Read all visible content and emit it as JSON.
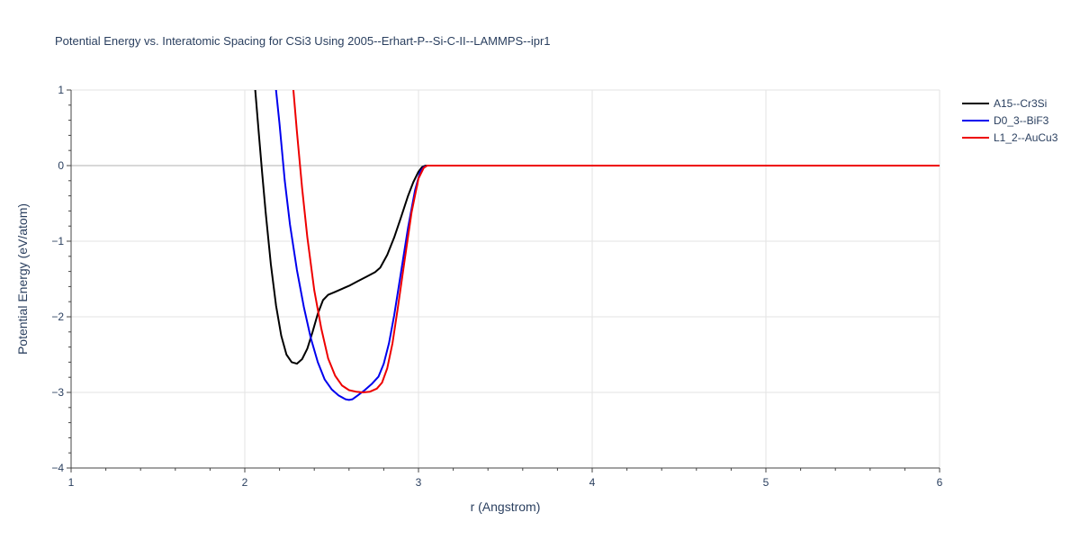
{
  "chart_data": {
    "type": "line",
    "title": "Potential Energy vs. Interatomic Spacing for CSi3 Using 2005--Erhart-P--Si-C-II--LAMMPS--ipr1",
    "xlabel": "r (Angstrom)",
    "ylabel": "Potential Energy (eV/atom)",
    "xlim": [
      1,
      6
    ],
    "ylim": [
      -4,
      1
    ],
    "xticks": [
      1,
      2,
      3,
      4,
      5,
      6
    ],
    "yticks": [
      -4,
      -3,
      -2,
      -1,
      0,
      1
    ],
    "xtick_labels": [
      "1",
      "2",
      "3",
      "4",
      "5",
      "6"
    ],
    "ytick_labels": [
      "−4",
      "−3",
      "−2",
      "−1",
      "0",
      "1"
    ],
    "grid": true,
    "legend_position": "top-right",
    "series": [
      {
        "name": "A15--Cr3Si",
        "color": "#000000",
        "x": [
          2.06,
          2.08,
          2.1,
          2.12,
          2.15,
          2.18,
          2.21,
          2.24,
          2.27,
          2.3,
          2.33,
          2.36,
          2.39,
          2.42,
          2.45,
          2.48,
          2.52,
          2.56,
          2.6,
          2.65,
          2.7,
          2.75,
          2.78,
          2.82,
          2.86,
          2.9,
          2.94,
          2.97,
          3.0,
          3.02,
          3.04,
          3.06,
          3.1,
          3.5,
          4.0,
          4.5,
          5.0,
          5.5,
          6.0
        ],
        "y": [
          1.0,
          0.45,
          -0.1,
          -0.62,
          -1.3,
          -1.85,
          -2.25,
          -2.5,
          -2.6,
          -2.62,
          -2.56,
          -2.42,
          -2.2,
          -1.96,
          -1.78,
          -1.71,
          -1.67,
          -1.63,
          -1.59,
          -1.53,
          -1.47,
          -1.41,
          -1.35,
          -1.18,
          -0.95,
          -0.68,
          -0.4,
          -0.22,
          -0.08,
          -0.02,
          0.0,
          0.0,
          0.0,
          0.0,
          0.0,
          0.0,
          0.0,
          0.0,
          0.0
        ]
      },
      {
        "name": "D0_3--BiF3",
        "color": "#0000ee",
        "x": [
          2.18,
          2.2,
          2.23,
          2.26,
          2.3,
          2.34,
          2.38,
          2.42,
          2.46,
          2.5,
          2.54,
          2.58,
          2.6,
          2.62,
          2.65,
          2.69,
          2.73,
          2.77,
          2.8,
          2.83,
          2.86,
          2.9,
          2.94,
          2.98,
          3.01,
          3.03,
          3.05,
          3.1,
          3.5,
          4.0,
          4.5,
          5.0,
          5.5,
          6.0
        ],
        "y": [
          1.0,
          0.55,
          -0.2,
          -0.78,
          -1.38,
          -1.87,
          -2.28,
          -2.6,
          -2.83,
          -2.96,
          -3.04,
          -3.09,
          -3.1,
          -3.09,
          -3.04,
          -2.97,
          -2.89,
          -2.79,
          -2.62,
          -2.35,
          -1.98,
          -1.4,
          -0.82,
          -0.33,
          -0.08,
          -0.02,
          0.0,
          0.0,
          0.0,
          0.0,
          0.0,
          0.0,
          0.0,
          0.0
        ]
      },
      {
        "name": "L1_2--AuCu3",
        "color": "#ee0000",
        "x": [
          2.28,
          2.3,
          2.33,
          2.36,
          2.4,
          2.44,
          2.48,
          2.52,
          2.56,
          2.6,
          2.64,
          2.68,
          2.72,
          2.76,
          2.79,
          2.82,
          2.85,
          2.88,
          2.92,
          2.96,
          3.0,
          3.03,
          3.05,
          3.1,
          3.5,
          4.0,
          4.5,
          5.0,
          5.5,
          6.0
        ],
        "y": [
          1.0,
          0.45,
          -0.3,
          -0.95,
          -1.65,
          -2.15,
          -2.55,
          -2.78,
          -2.91,
          -2.97,
          -2.99,
          -3.0,
          -2.99,
          -2.95,
          -2.87,
          -2.68,
          -2.35,
          -1.9,
          -1.25,
          -0.62,
          -0.17,
          -0.03,
          0.0,
          0.0,
          0.0,
          0.0,
          0.0,
          0.0,
          0.0,
          0.0
        ]
      }
    ]
  }
}
